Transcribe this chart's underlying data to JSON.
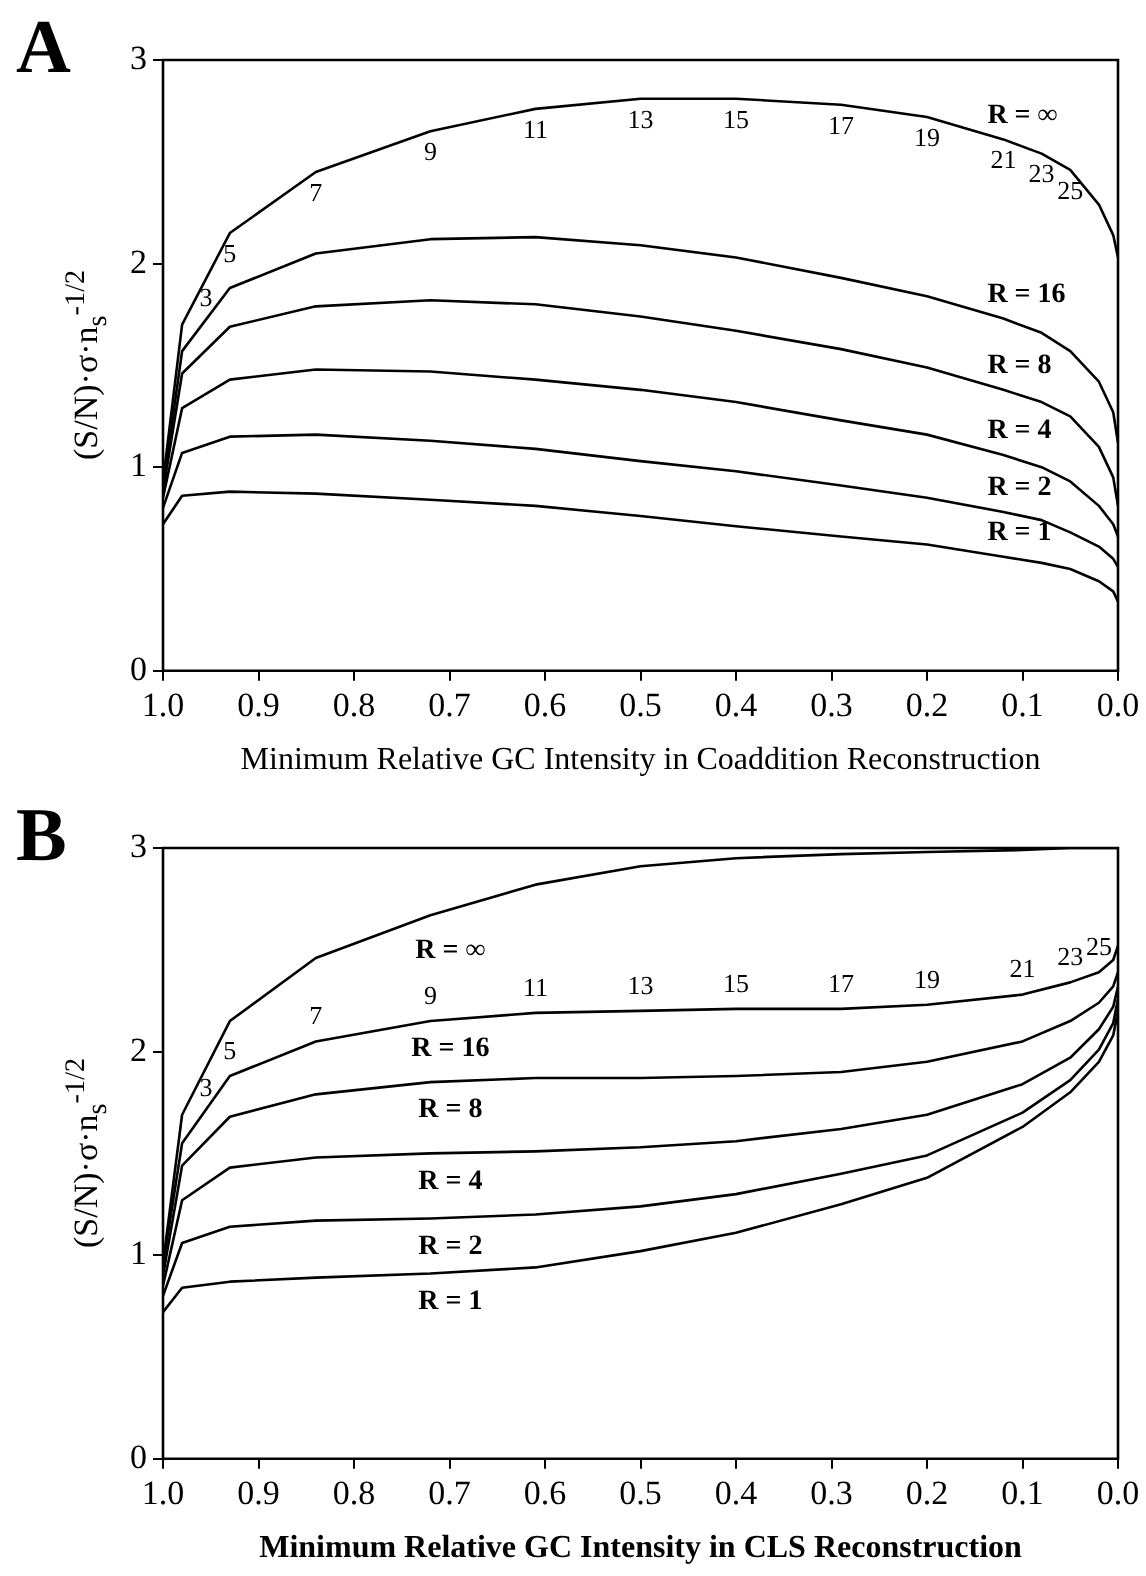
{
  "chart_data": [
    {
      "type": "line",
      "title": "A",
      "xlabel": "Minimum Relative GC Intensity in Coaddition Reconstruction",
      "ylabel": "(S/N)·σ·n$_{s}$$^{-1/2}$",
      "x": [
        1.0,
        0.98,
        0.93,
        0.84,
        0.72,
        0.61,
        0.5,
        0.4,
        0.29,
        0.2,
        0.12,
        0.08,
        0.05,
        0.02,
        0.005,
        0.0
      ],
      "series": [
        {
          "name": "R = ∞",
          "color": "#000000",
          "values": [
            0.93,
            1.7,
            2.15,
            2.45,
            2.65,
            2.76,
            2.81,
            2.81,
            2.78,
            2.72,
            2.61,
            2.54,
            2.46,
            2.29,
            2.14,
            2.03
          ]
        },
        {
          "name": "R = 16",
          "color": "#000000",
          "values": [
            0.9,
            1.57,
            1.88,
            2.05,
            2.12,
            2.13,
            2.09,
            2.03,
            1.93,
            1.84,
            1.73,
            1.66,
            1.57,
            1.42,
            1.27,
            1.12
          ]
        },
        {
          "name": "R = 8",
          "color": "#000000",
          "values": [
            0.88,
            1.46,
            1.69,
            1.79,
            1.82,
            1.8,
            1.74,
            1.67,
            1.58,
            1.49,
            1.38,
            1.32,
            1.25,
            1.1,
            0.95,
            0.81
          ]
        },
        {
          "name": "R = 4",
          "color": "#000000",
          "values": [
            0.85,
            1.29,
            1.43,
            1.48,
            1.47,
            1.43,
            1.38,
            1.32,
            1.23,
            1.16,
            1.06,
            1.0,
            0.93,
            0.81,
            0.72,
            0.66
          ]
        },
        {
          "name": "R = 2",
          "color": "#000000",
          "values": [
            0.8,
            1.07,
            1.15,
            1.16,
            1.13,
            1.09,
            1.03,
            0.98,
            0.91,
            0.85,
            0.78,
            0.74,
            0.68,
            0.61,
            0.55,
            0.51
          ]
        },
        {
          "name": "R = 1",
          "color": "#000000",
          "values": [
            0.72,
            0.86,
            0.88,
            0.87,
            0.84,
            0.81,
            0.76,
            0.71,
            0.66,
            0.62,
            0.56,
            0.53,
            0.5,
            0.44,
            0.39,
            0.34
          ]
        }
      ],
      "xlim": [
        1.0,
        0.0
      ],
      "xticks": [
        {
          "value": 1.0,
          "label": "1.0"
        },
        {
          "value": 0.9,
          "label": "0.9"
        },
        {
          "value": 0.8,
          "label": "0.8"
        },
        {
          "value": 0.7,
          "label": "0.7"
        },
        {
          "value": 0.6,
          "label": "0.6"
        },
        {
          "value": 0.5,
          "label": "0.5"
        },
        {
          "value": 0.4,
          "label": "0.4"
        },
        {
          "value": 0.3,
          "label": "0.3"
        },
        {
          "value": 0.2,
          "label": "0.2"
        },
        {
          "value": 0.1,
          "label": "0.1"
        },
        {
          "value": 0.0,
          "label": "0.0"
        }
      ],
      "ylim": [
        0,
        3
      ],
      "yticks": [
        0,
        1,
        2,
        3
      ],
      "annotations": [
        {
          "text": "3",
          "x": 0.98,
          "y": 1.7
        },
        {
          "text": "5",
          "x": 0.93,
          "y": 2.15
        },
        {
          "text": "7",
          "x": 0.84,
          "y": 2.45
        },
        {
          "text": "9",
          "x": 0.72,
          "y": 2.65
        },
        {
          "text": "11",
          "x": 0.61,
          "y": 2.76
        },
        {
          "text": "13",
          "x": 0.5,
          "y": 2.81
        },
        {
          "text": "15",
          "x": 0.4,
          "y": 2.81
        },
        {
          "text": "17",
          "x": 0.29,
          "y": 2.78
        },
        {
          "text": "19",
          "x": 0.2,
          "y": 2.72
        },
        {
          "text": "21",
          "x": 0.12,
          "y": 2.61
        },
        {
          "text": "23",
          "x": 0.08,
          "y": 2.54
        },
        {
          "text": "25",
          "x": 0.05,
          "y": 2.46
        }
      ],
      "grid": false,
      "legend": false,
      "marker": "none",
      "line_style": "solid"
    },
    {
      "type": "line",
      "title": "B",
      "xlabel": "Minimum Relative GC Intensity in CLS Reconstruction",
      "ylabel": "(S/N)·σ·n$_{s}$$^{-1/2}$",
      "x": [
        1.0,
        0.98,
        0.93,
        0.84,
        0.72,
        0.61,
        0.5,
        0.4,
        0.29,
        0.2,
        0.1,
        0.05,
        0.02,
        0.005,
        0.0
      ],
      "series": [
        {
          "name": "R = ∞",
          "color": "#000000",
          "values": [
            0.96,
            1.69,
            2.15,
            2.46,
            2.67,
            2.82,
            2.91,
            2.95,
            2.97,
            2.98,
            2.99,
            3.0,
            3.0,
            3.0,
            3.0
          ]
        },
        {
          "name": "R = 16",
          "color": "#000000",
          "values": [
            0.95,
            1.55,
            1.88,
            2.05,
            2.15,
            2.19,
            2.2,
            2.21,
            2.21,
            2.23,
            2.28,
            2.34,
            2.39,
            2.45,
            2.52
          ]
        },
        {
          "name": "R = 8",
          "color": "#000000",
          "values": [
            0.9,
            1.44,
            1.68,
            1.79,
            1.85,
            1.87,
            1.87,
            1.88,
            1.9,
            1.95,
            2.05,
            2.15,
            2.24,
            2.32,
            2.39
          ]
        },
        {
          "name": "R = 4",
          "color": "#000000",
          "values": [
            0.85,
            1.27,
            1.43,
            1.48,
            1.5,
            1.51,
            1.53,
            1.56,
            1.62,
            1.69,
            1.84,
            1.97,
            2.11,
            2.22,
            2.32
          ]
        },
        {
          "name": "R = 2",
          "color": "#000000",
          "values": [
            0.8,
            1.06,
            1.14,
            1.17,
            1.18,
            1.2,
            1.24,
            1.3,
            1.4,
            1.49,
            1.7,
            1.86,
            2.01,
            2.14,
            2.26
          ]
        },
        {
          "name": "R = 1",
          "color": "#000000",
          "values": [
            0.72,
            0.84,
            0.87,
            0.89,
            0.91,
            0.94,
            1.02,
            1.11,
            1.25,
            1.38,
            1.63,
            1.8,
            1.95,
            2.08,
            2.2
          ]
        }
      ],
      "xlim": [
        1.0,
        0.0
      ],
      "xticks": [
        {
          "value": 1.0,
          "label": "1.0"
        },
        {
          "value": 0.9,
          "label": "0.9"
        },
        {
          "value": 0.8,
          "label": "0.8"
        },
        {
          "value": 0.7,
          "label": "0.7"
        },
        {
          "value": 0.6,
          "label": "0.6"
        },
        {
          "value": 0.5,
          "label": "0.5"
        },
        {
          "value": 0.4,
          "label": "0.4"
        },
        {
          "value": 0.3,
          "label": "0.3"
        },
        {
          "value": 0.2,
          "label": "0.2"
        },
        {
          "value": 0.1,
          "label": "0.1"
        },
        {
          "value": 0.0,
          "label": "0.0"
        }
      ],
      "ylim": [
        0,
        3
      ],
      "yticks": [
        0,
        1,
        2,
        3
      ],
      "annotations": [
        {
          "text": "3",
          "x": 0.98,
          "y": 1.55
        },
        {
          "text": "5",
          "x": 0.93,
          "y": 1.88
        },
        {
          "text": "7",
          "x": 0.84,
          "y": 2.05
        },
        {
          "text": "9",
          "x": 0.72,
          "y": 2.15
        },
        {
          "text": "11",
          "x": 0.61,
          "y": 2.19
        },
        {
          "text": "13",
          "x": 0.5,
          "y": 2.2
        },
        {
          "text": "15",
          "x": 0.4,
          "y": 2.21
        },
        {
          "text": "17",
          "x": 0.29,
          "y": 2.21
        },
        {
          "text": "19",
          "x": 0.2,
          "y": 2.23
        },
        {
          "text": "21",
          "x": 0.1,
          "y": 2.28
        },
        {
          "text": "23",
          "x": 0.05,
          "y": 2.34
        },
        {
          "text": "25",
          "x": 0.02,
          "y": 2.39
        }
      ],
      "grid": false,
      "legend": false,
      "marker": "none",
      "line_style": "solid"
    }
  ]
}
